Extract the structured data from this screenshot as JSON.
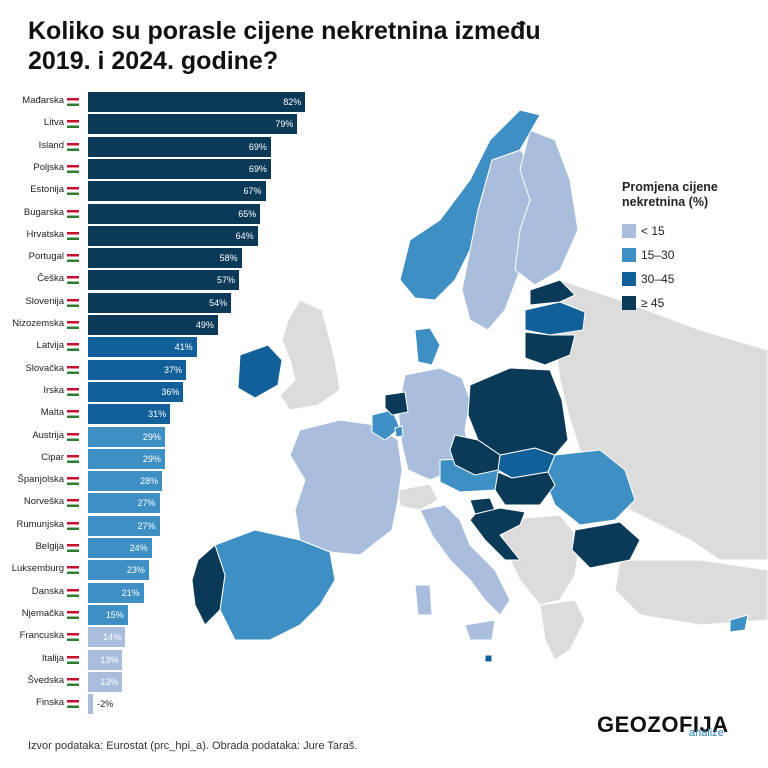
{
  "title": "Koliko su porasle cijene nekretnina između 2019. i 2024. godine?",
  "legend": {
    "title": "Promjena cijene nekretnina (%)",
    "items": [
      {
        "label": "< 15",
        "color": "#a9bedc"
      },
      {
        "label": "15–30",
        "color": "#3d8fc4"
      },
      {
        "label": "30–45",
        "color": "#11609a"
      },
      {
        "label": "≥ 45",
        "color": "#0b3a59"
      }
    ]
  },
  "chart_data": {
    "type": "bar",
    "orientation": "horizontal",
    "categories": [
      "Mađarska",
      "Litva",
      "Island",
      "Poljska",
      "Estonija",
      "Bugarska",
      "Hrvatska",
      "Portugal",
      "Češka",
      "Slovenija",
      "Nizozemska",
      "Latvija",
      "Slovačka",
      "Irska",
      "Malta",
      "Austrija",
      "Cipar",
      "Španjolska",
      "Norveška",
      "Rumunjska",
      "Belgija",
      "Luksemburg",
      "Danska",
      "Njemačka",
      "Francuska",
      "Italija",
      "Švedska",
      "Finska"
    ],
    "values": [
      82,
      79,
      69,
      69,
      67,
      65,
      64,
      58,
      57,
      54,
      49,
      41,
      37,
      36,
      31,
      29,
      29,
      28,
      27,
      27,
      24,
      23,
      21,
      15,
      14,
      13,
      13,
      -2
    ],
    "value_labels": [
      "82%",
      "79%",
      "69%",
      "69%",
      "67%",
      "65%",
      "64%",
      "58%",
      "57%",
      "54%",
      "49%",
      "41%",
      "37%",
      "36%",
      "31%",
      "29%",
      "29%",
      "28%",
      "27%",
      "27%",
      "24%",
      "23%",
      "21%",
      "15%",
      "14%",
      "13%",
      "13%",
      "-2%"
    ],
    "xlabel": "",
    "ylabel": ""
  },
  "source": "Izvor podataka: Eurostat (prc_hpi_a). Obrada podataka: Jure Taraš.",
  "logo": {
    "main": "GEOZOFIJA",
    "sub": "analize"
  },
  "colors": {
    "nodata": "#dcdcdc",
    "lt15": "#a9bedc",
    "c15_30": "#3d8fc4",
    "c30_45": "#11609a",
    "ge45": "#0b3a59"
  }
}
